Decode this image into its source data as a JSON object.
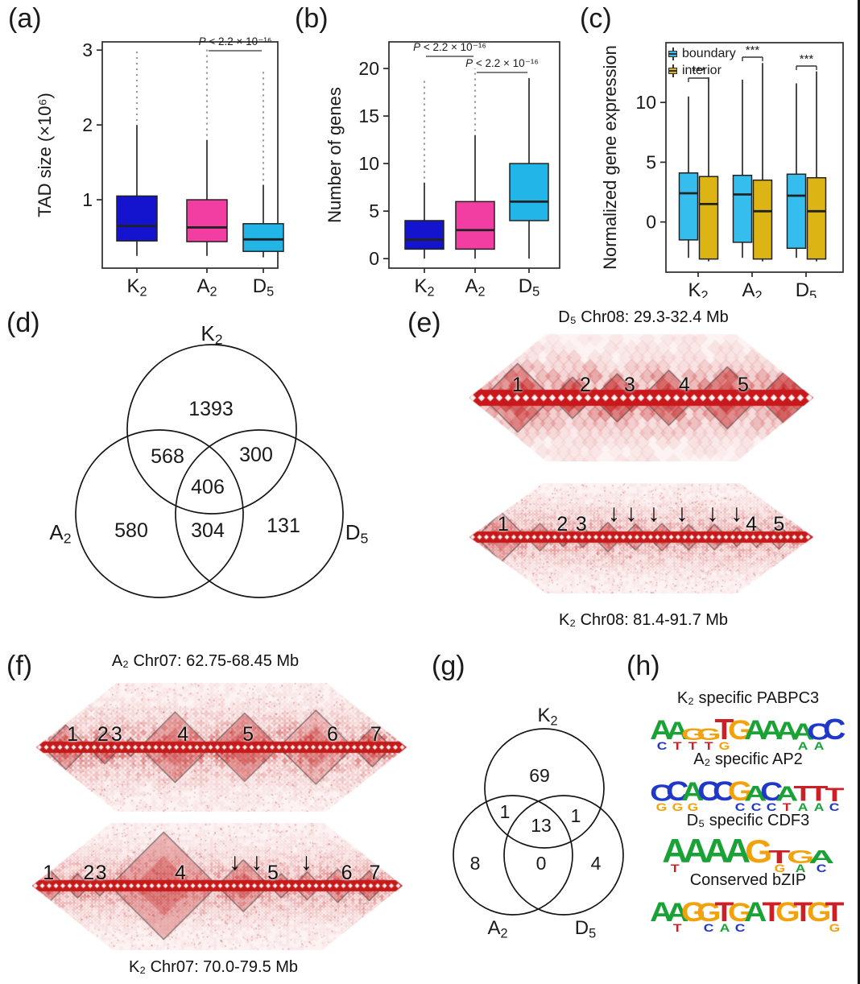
{
  "labels": {
    "a": "(a)",
    "b": "(b)",
    "c": "(c)",
    "d": "(d)",
    "e": "(e)",
    "f": "(f)",
    "g": "(g)",
    "h": "(h)"
  },
  "chart_data": [
    {
      "type": "box",
      "panel": "a",
      "title": "",
      "ylabel": "TAD size (×10⁶)",
      "yticks": [
        "1",
        "2",
        "3"
      ],
      "ytick_vals": [
        1,
        2,
        3
      ],
      "ylim": [
        0.086,
        3.11
      ],
      "categories": [
        "K2",
        "A2",
        "D5"
      ],
      "series": [
        {
          "name": "K2",
          "color": "#1414cf",
          "whislo": 0.25,
          "q1": 0.45,
          "med": 0.65,
          "q3": 1.05,
          "whishi": 2.0,
          "out_hi": 3.0
        },
        {
          "name": "A2",
          "color": "#f23da2",
          "whislo": 0.25,
          "q1": 0.44,
          "med": 0.63,
          "q3": 1.0,
          "whishi": 1.8,
          "out_hi": 3.05
        },
        {
          "name": "D5",
          "color": "#22b5e8",
          "whislo": 0.23,
          "q1": 0.31,
          "med": 0.47,
          "q3": 0.68,
          "whishi": 1.2,
          "out_hi": 2.75
        }
      ],
      "pvalues": [
        {
          "text": "P < 2.2 × 10⁻¹⁶",
          "i1": 1,
          "i2": 2
        }
      ]
    },
    {
      "type": "box",
      "panel": "b",
      "title": "",
      "ylabel": "Number of genes",
      "yticks": [
        "0",
        "5",
        "10",
        "15",
        "20"
      ],
      "ytick_vals": [
        0,
        5,
        10,
        15,
        20
      ],
      "ylim": [
        -1,
        22.8
      ],
      "categories": [
        "K2",
        "A2",
        "D5"
      ],
      "series": [
        {
          "name": "K2",
          "color": "#1414cf",
          "whislo": 0,
          "q1": 1,
          "med": 2,
          "q3": 4,
          "whishi": 8,
          "out_hi": 19
        },
        {
          "name": "A2",
          "color": "#f23da2",
          "whislo": 0,
          "q1": 1,
          "med": 3,
          "q3": 6,
          "whishi": 13,
          "out_hi": 20
        },
        {
          "name": "D5",
          "color": "#22b5e8",
          "whislo": 0,
          "q1": 4,
          "med": 6,
          "q3": 10,
          "whishi": 19,
          "out_hi": null
        }
      ],
      "pvalues": [
        {
          "text": "P < 2.2 × 10⁻¹⁶",
          "i1": 0,
          "i2": 1
        },
        {
          "text": "P < 2.2 × 10⁻¹⁶",
          "i1": 1,
          "i2": 2
        }
      ]
    },
    {
      "type": "box",
      "panel": "c",
      "title": "",
      "ylabel": "Normalized gene expression",
      "yticks": [
        "0",
        "5",
        "10"
      ],
      "ytick_vals": [
        0,
        5,
        10
      ],
      "ylim": [
        -4.2,
        15
      ],
      "categories": [
        "K2",
        "A2",
        "D5"
      ],
      "legend": [
        {
          "label": "boundary",
          "color": "#35bdee"
        },
        {
          "label": "interior",
          "color": "#dcb414"
        }
      ],
      "series": [
        {
          "name": "K2-boundary",
          "color": "#35bdee",
          "whislo": -3.0,
          "q1": -1.5,
          "med": 2.4,
          "q3": 4.1,
          "whishi": 10.5,
          "out_hi": null
        },
        {
          "name": "K2-interior",
          "color": "#dcb414",
          "whislo": -3.3,
          "q1": -3.1,
          "med": 1.5,
          "q3": 3.8,
          "whishi": 12.1,
          "out_hi": null
        },
        {
          "name": "A2-boundary",
          "color": "#35bdee",
          "whislo": -3.0,
          "q1": -1.7,
          "med": 2.3,
          "q3": 3.9,
          "whishi": 11.9,
          "out_hi": null
        },
        {
          "name": "A2-interior",
          "color": "#dcb414",
          "whislo": -3.3,
          "q1": -3.1,
          "med": 0.9,
          "q3": 3.5,
          "whishi": 13.3,
          "out_hi": null
        },
        {
          "name": "D5-boundary",
          "color": "#35bdee",
          "whislo": -3.0,
          "q1": -2.2,
          "med": 2.2,
          "q3": 4.0,
          "whishi": 11.6,
          "out_hi": null
        },
        {
          "name": "D5-interior",
          "color": "#dcb414",
          "whislo": -3.3,
          "q1": -3.1,
          "med": 0.9,
          "q3": 3.7,
          "whishi": 12.6,
          "out_hi": null
        }
      ],
      "sig": [
        {
          "text": "***"
        },
        {
          "text": "***"
        },
        {
          "text": "***"
        }
      ]
    },
    {
      "type": "venn",
      "panel": "d",
      "set_labels": [
        "K2",
        "A2",
        "D5"
      ],
      "regions": [
        "1393",
        "568",
        "300",
        "406",
        "580",
        "304",
        "131"
      ],
      "region_keys": [
        "K2 only",
        "K2∩A2",
        "K2∩D5",
        "K2∩A2∩D5",
        "A2 only",
        "A2∩D5",
        "D5 only"
      ]
    },
    {
      "type": "heatmap",
      "panel": "e",
      "title": "D₅ Chr08: 29.3-32.4 Mb",
      "title_pos": "top",
      "tad_labels": [
        {
          "t": "1",
          "x": 0.14
        },
        {
          "t": "2",
          "x": 0.337
        },
        {
          "t": "3",
          "x": 0.466
        },
        {
          "t": "4",
          "x": 0.625
        },
        {
          "t": "5",
          "x": 0.796
        }
      ],
      "arrows": [],
      "tads": [
        [
          0.0,
          0.04
        ],
        [
          0.04,
          0.24
        ],
        [
          0.24,
          0.36
        ],
        [
          0.36,
          0.5
        ],
        [
          0.5,
          0.66
        ],
        [
          0.66,
          0.84
        ],
        [
          0.84,
          0.99
        ]
      ]
    },
    {
      "type": "heatmap",
      "panel": "e",
      "title": "K₂ Chr08: 81.4-91.7 Mb",
      "title_pos": "bottom",
      "tad_labels": [
        {
          "t": "1",
          "x": 0.098
        },
        {
          "t": "2",
          "x": 0.27
        },
        {
          "t": "3",
          "x": 0.325
        },
        {
          "t": "4",
          "x": 0.82
        },
        {
          "t": "5",
          "x": 0.9
        }
      ],
      "arrows": [
        0.42,
        0.47,
        0.536,
        0.618,
        0.707,
        0.777
      ],
      "tads": [
        [
          0.02,
          0.165
        ],
        [
          0.165,
          0.245
        ],
        [
          0.245,
          0.3
        ],
        [
          0.3,
          0.36
        ],
        [
          0.36,
          0.445
        ],
        [
          0.445,
          0.52
        ],
        [
          0.52,
          0.6
        ],
        [
          0.6,
          0.675
        ],
        [
          0.675,
          0.75
        ],
        [
          0.75,
          0.805
        ],
        [
          0.805,
          0.865
        ],
        [
          0.865,
          0.935
        ]
      ]
    },
    {
      "type": "heatmap",
      "panel": "f",
      "title": "A₂ Chr07: 62.75-68.45 Mb",
      "title_pos": "top",
      "tad_labels": [
        {
          "t": "1",
          "x": 0.098
        },
        {
          "t": "2",
          "x": 0.18
        },
        {
          "t": "3",
          "x": 0.217
        },
        {
          "t": "4",
          "x": 0.396
        },
        {
          "t": "5",
          "x": 0.572
        },
        {
          "t": "6",
          "x": 0.8
        },
        {
          "t": "7",
          "x": 0.917
        }
      ],
      "arrows": [],
      "tads": [
        [
          0.02,
          0.14
        ],
        [
          0.14,
          0.23
        ],
        [
          0.23,
          0.28
        ],
        [
          0.28,
          0.47
        ],
        [
          0.47,
          0.655
        ],
        [
          0.655,
          0.855
        ],
        [
          0.855,
          0.96
        ]
      ]
    },
    {
      "type": "heatmap",
      "panel": "f",
      "title": "K₂ Chr07: 70.0-79.5 Mb",
      "title_pos": "bottom",
      "tad_labels": [
        {
          "t": "1",
          "x": 0.044
        },
        {
          "t": "2",
          "x": 0.153
        },
        {
          "t": "3",
          "x": 0.186
        },
        {
          "t": "4",
          "x": 0.4
        },
        {
          "t": "5",
          "x": 0.65
        },
        {
          "t": "6",
          "x": 0.849
        },
        {
          "t": "7",
          "x": 0.925
        }
      ],
      "arrows": [
        0.547,
        0.606,
        0.74
      ],
      "tads": [
        [
          0.0,
          0.09
        ],
        [
          0.09,
          0.155
        ],
        [
          0.155,
          0.21
        ],
        [
          0.21,
          0.5
        ],
        [
          0.5,
          0.64
        ],
        [
          0.64,
          0.705
        ],
        [
          0.705,
          0.78
        ],
        [
          0.78,
          0.87
        ],
        [
          0.87,
          0.95
        ]
      ]
    },
    {
      "type": "venn",
      "panel": "g",
      "set_labels": [
        "K2",
        "A2",
        "D5"
      ],
      "regions": [
        "69",
        "1",
        "1",
        "13",
        "8",
        "0",
        "4"
      ],
      "region_keys": [
        "K2 only",
        "K2∩A2",
        "K2∩D5",
        "K2∩A2∩D5",
        "A2 only",
        "A2∩D5",
        "D5 only"
      ]
    },
    {
      "type": "sequence-logo",
      "panel": "h",
      "colors": {
        "A": "#1aa237",
        "C": "#2038c8",
        "G": "#f2a20d",
        "T": "#cc2026"
      },
      "motifs": [
        {
          "title": "K₂ specific PABPC3",
          "consensus": "AAGGTGAAAACC",
          "positions": [
            {
              "p": "A",
              "h": 1.0,
              "s": "C"
            },
            {
              "p": "A",
              "h": 0.92,
              "s": "T"
            },
            {
              "p": "G",
              "h": 0.62,
              "s": "T"
            },
            {
              "p": "G",
              "h": 0.62,
              "s": "T"
            },
            {
              "p": "T",
              "h": 1.05,
              "s": "G"
            },
            {
              "p": "G",
              "h": 1.0,
              "s": ""
            },
            {
              "p": "A",
              "h": 1.0,
              "s": ""
            },
            {
              "p": "A",
              "h": 0.98,
              "s": ""
            },
            {
              "p": "A",
              "h": 0.92,
              "s": ""
            },
            {
              "p": "A",
              "h": 0.85,
              "s": "A"
            },
            {
              "p": "C",
              "h": 0.85,
              "s": "A"
            },
            {
              "p": "C",
              "h": 1.05,
              "s": ""
            }
          ]
        },
        {
          "title": "A₂ specific AP2",
          "consensus": "CCACCGACATTT",
          "positions": [
            {
              "p": "C",
              "h": 0.85,
              "s": "G"
            },
            {
              "p": "C",
              "h": 1.0,
              "s": "G"
            },
            {
              "p": "A",
              "h": 0.95,
              "s": "G"
            },
            {
              "p": "C",
              "h": 1.0,
              "s": ""
            },
            {
              "p": "C",
              "h": 1.0,
              "s": ""
            },
            {
              "p": "G",
              "h": 1.0,
              "s": "C"
            },
            {
              "p": "A",
              "h": 0.8,
              "s": "C"
            },
            {
              "p": "C",
              "h": 0.95,
              "s": "C"
            },
            {
              "p": "A",
              "h": 0.75,
              "s": "T"
            },
            {
              "p": "T",
              "h": 0.8,
              "s": "A"
            },
            {
              "p": "T",
              "h": 0.8,
              "s": "A"
            },
            {
              "p": "T",
              "h": 0.7,
              "s": "C"
            }
          ]
        },
        {
          "title": "D₅ specific CDF3",
          "consensus": "AAAAGTGA",
          "positions": [
            {
              "p": "A",
              "h": 1.0,
              "s": "T"
            },
            {
              "p": "A",
              "h": 1.0,
              "s": ""
            },
            {
              "p": "A",
              "h": 1.0,
              "s": ""
            },
            {
              "p": "A",
              "h": 1.0,
              "s": ""
            },
            {
              "p": "G",
              "h": 0.95,
              "s": ""
            },
            {
              "p": "T",
              "h": 0.55,
              "s": "G"
            },
            {
              "p": "G",
              "h": 0.55,
              "s": "A"
            },
            {
              "p": "A",
              "h": 0.55,
              "s": "C"
            }
          ]
        },
        {
          "title": "Conserved bZIP",
          "consensus": "AAGGTGATGTGT",
          "positions": [
            {
              "p": "A",
              "h": 1.0,
              "s": ""
            },
            {
              "p": "A",
              "h": 0.95,
              "s": "T"
            },
            {
              "p": "G",
              "h": 1.0,
              "s": ""
            },
            {
              "p": "G",
              "h": 0.95,
              "s": "C"
            },
            {
              "p": "T",
              "h": 1.0,
              "s": "A"
            },
            {
              "p": "G",
              "h": 0.95,
              "s": "C"
            },
            {
              "p": "A",
              "h": 1.0,
              "s": ""
            },
            {
              "p": "T",
              "h": 1.0,
              "s": ""
            },
            {
              "p": "G",
              "h": 1.0,
              "s": ""
            },
            {
              "p": "T",
              "h": 1.0,
              "s": ""
            },
            {
              "p": "G",
              "h": 1.0,
              "s": ""
            },
            {
              "p": "T",
              "h": 1.0,
              "s": "G"
            }
          ]
        }
      ]
    }
  ]
}
